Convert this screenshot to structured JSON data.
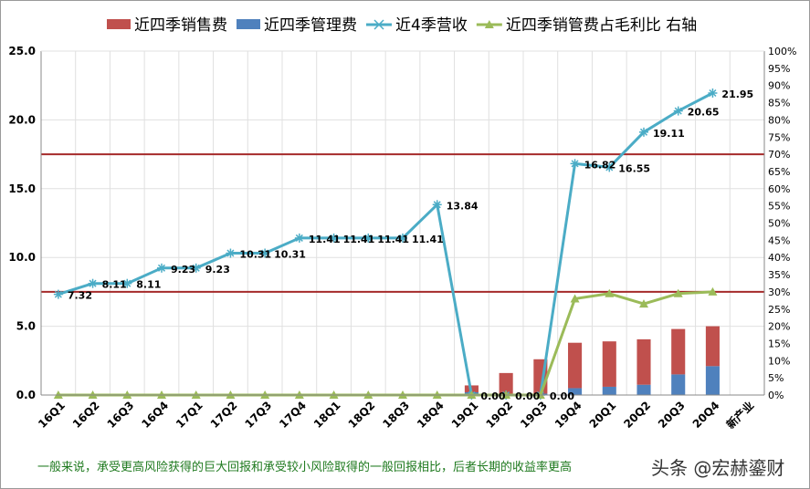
{
  "chart_data": {
    "type": "bar",
    "legend_placement": "top",
    "categories": [
      "16Q1",
      "16Q2",
      "16Q3",
      "16Q4",
      "17Q1",
      "17Q2",
      "17Q3",
      "17Q4",
      "18Q1",
      "18Q2",
      "18Q3",
      "18Q4",
      "19Q1",
      "19Q2",
      "19Q3",
      "19Q4",
      "20Q1",
      "20Q2",
      "20Q3",
      "20Q4",
      "新产业"
    ],
    "y_left": {
      "min": 0,
      "max": 25,
      "ticks": [
        "0.0",
        "5.0",
        "10.0",
        "15.0",
        "20.0",
        "25.0"
      ]
    },
    "y_right": {
      "min": 0,
      "max": 100,
      "ticks": [
        "0%",
        "5%",
        "10%",
        "15%",
        "20%",
        "25%",
        "30%",
        "35%",
        "40%",
        "45%",
        "50%",
        "55%",
        "60%",
        "65%",
        "70%",
        "75%",
        "80%",
        "85%",
        "90%",
        "95%",
        "100%"
      ]
    },
    "series": [
      {
        "name": "近四季销售费",
        "type": "stacked-bar",
        "axis": "left",
        "color": "#c0504d",
        "values": [
          null,
          null,
          null,
          null,
          null,
          null,
          null,
          null,
          null,
          null,
          null,
          null,
          0.5,
          1.5,
          2.5,
          3.3,
          3.3,
          3.3,
          3.3,
          2.9,
          null
        ]
      },
      {
        "name": "近四季管理费",
        "type": "stacked-bar",
        "axis": "left",
        "color": "#4f81bd",
        "values": [
          null,
          null,
          null,
          null,
          null,
          null,
          null,
          null,
          null,
          null,
          null,
          null,
          0.2,
          0.1,
          0.1,
          0.5,
          0.6,
          0.75,
          1.5,
          2.1,
          null
        ]
      },
      {
        "name": "近4季营收",
        "type": "line",
        "axis": "left",
        "color": "#4bacc6",
        "marker": "asterisk",
        "values": [
          7.32,
          8.11,
          8.11,
          9.23,
          9.23,
          10.31,
          10.31,
          11.41,
          11.41,
          11.41,
          11.41,
          13.84,
          0.0,
          0.0,
          0.0,
          16.82,
          16.55,
          19.11,
          20.65,
          21.95,
          null
        ],
        "labels": [
          "7.32",
          "8.11",
          "8.11",
          "9.23",
          "9.23",
          "10.31",
          "10.31",
          "11.41",
          "11.41",
          "11.41",
          "11.41",
          "13.84",
          "0.00",
          "0.00",
          "0.00",
          "16.82",
          "16.55",
          "19.11",
          "20.65",
          "21.95",
          ""
        ]
      },
      {
        "name": "近四季销管费占毛利比 右轴",
        "type": "line",
        "axis": "right",
        "color": "#9bbb59",
        "marker": "triangle",
        "values": [
          0,
          0,
          0,
          0,
          0,
          0,
          0,
          0,
          0,
          0,
          0,
          0,
          0,
          0,
          0,
          28,
          29.5,
          26.5,
          29.5,
          30,
          null
        ]
      }
    ],
    "reference_lines": [
      {
        "axis": "right",
        "value": 70,
        "color": "#a52a2a"
      },
      {
        "axis": "right",
        "value": 30,
        "color": "#a52a2a"
      }
    ]
  },
  "footnote": "一般来说，承受更高风险获得的巨大回报和承受较小风险取得的一般回报相比，后者长期的收益率更高",
  "watermark": "头条 @宏赫鎏财"
}
